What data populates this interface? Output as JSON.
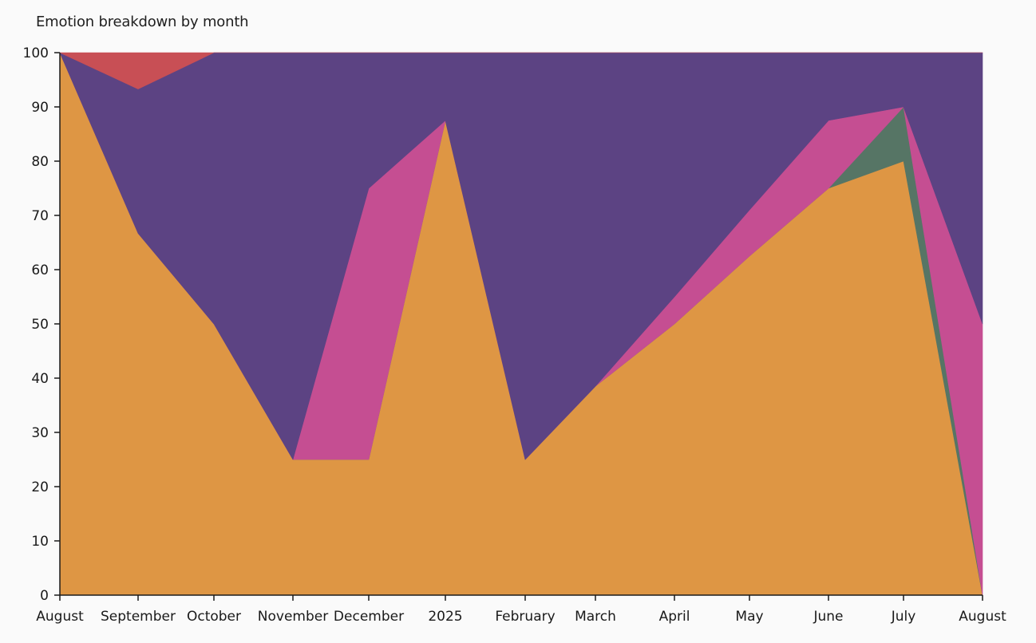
{
  "chart_data": {
    "type": "area",
    "stacked": true,
    "normalized": true,
    "title": "Emotion breakdown by month",
    "xlabel": "",
    "ylabel": "",
    "ylim": [
      0,
      100
    ],
    "y_ticks": [
      0,
      10,
      20,
      30,
      40,
      50,
      60,
      70,
      80,
      90,
      100
    ],
    "categories": [
      "August",
      "September",
      "October",
      "November",
      "December",
      "2025",
      "February",
      "March",
      "April",
      "May",
      "June",
      "July",
      "August"
    ],
    "grid": false,
    "legend": "none",
    "series": [
      {
        "color": "#de9644",
        "values": [
          100,
          66.7,
          50,
          25,
          25,
          87.5,
          25,
          38.5,
          50,
          62.5,
          75,
          80,
          0
        ]
      },
      {
        "color": "#567565",
        "values": [
          0,
          0,
          0,
          0,
          0,
          0,
          0,
          0,
          0,
          0,
          0,
          10,
          0
        ]
      },
      {
        "color": "#c54e92",
        "values": [
          0,
          0,
          0,
          0,
          50,
          0,
          0,
          0,
          5,
          8.5,
          12.5,
          0,
          50
        ]
      },
      {
        "color": "#5c4383",
        "values": [
          0,
          26.6,
          50,
          75,
          25,
          12.5,
          75,
          61.5,
          45,
          29,
          12.5,
          10,
          50
        ]
      },
      {
        "color": "#c84f55",
        "values": [
          0,
          6.7,
          0,
          0,
          0,
          0,
          0,
          0,
          0,
          0,
          0,
          0,
          0
        ]
      }
    ]
  }
}
